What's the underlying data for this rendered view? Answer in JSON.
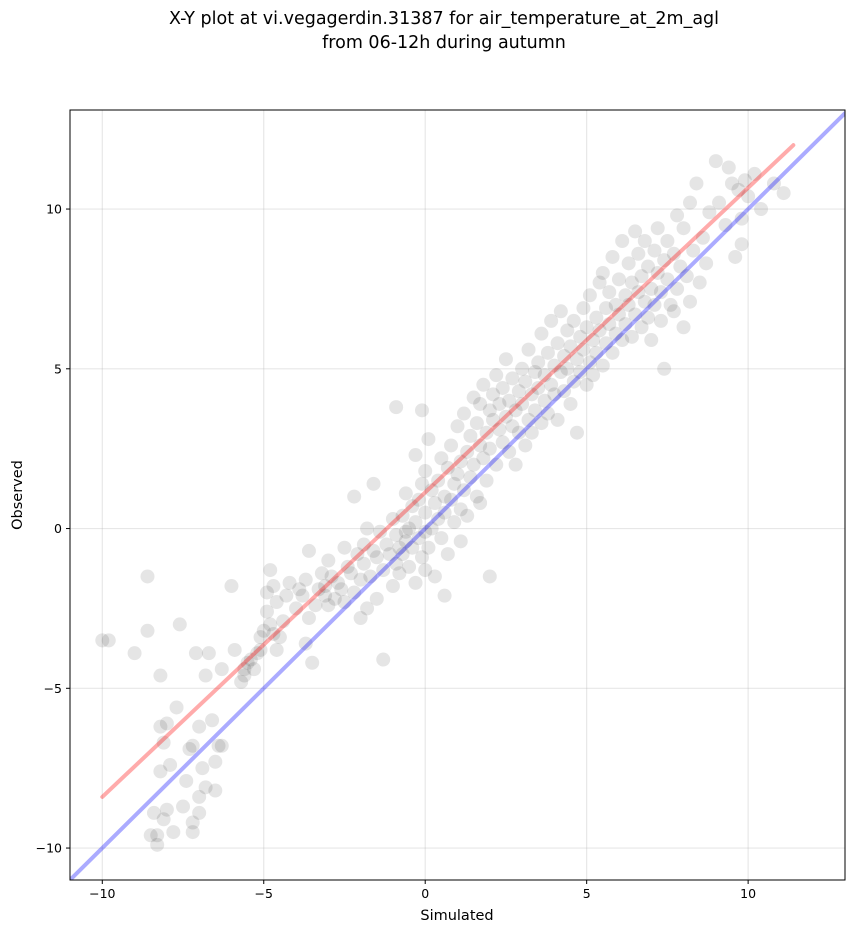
{
  "chart_data": {
    "type": "scatter",
    "title": [
      "X-Y plot at vi.vegagerdin.31387 for air_temperature_at_2m_agl",
      "from 06-12h during autumn"
    ],
    "xlabel": "Simulated",
    "ylabel": "Observed",
    "xlim": [
      -11,
      13
    ],
    "ylim": [
      -11,
      13.1
    ],
    "xticks": [
      -10,
      -5,
      0,
      5,
      10
    ],
    "yticks": [
      -10,
      -5,
      0,
      5,
      10
    ],
    "xtick_labels": [
      "−10",
      "−5",
      "0",
      "5",
      "10"
    ],
    "ytick_labels": [
      "−10",
      "−5",
      "0",
      "5",
      "10"
    ],
    "grid": true,
    "legend": "none",
    "point_color": "#000000",
    "point_opacity": 0.1,
    "fit_line": {
      "color": "#ff0000",
      "opacity": 0.33,
      "x": [
        -10,
        11.4
      ],
      "y": [
        -8.4,
        12.0
      ]
    },
    "identity_line": {
      "color": "#0000ff",
      "opacity": 0.33,
      "x": [
        -11,
        13
      ],
      "y": [
        -11,
        13
      ]
    },
    "points": [
      [
        -10.0,
        -3.5
      ],
      [
        -9.8,
        -3.5
      ],
      [
        -9.0,
        -3.9
      ],
      [
        -8.6,
        -1.5
      ],
      [
        -8.6,
        -3.2
      ],
      [
        -8.5,
        -9.6
      ],
      [
        -8.4,
        -8.9
      ],
      [
        -8.3,
        -9.6
      ],
      [
        -8.3,
        -9.9
      ],
      [
        -8.2,
        -7.6
      ],
      [
        -8.2,
        -6.2
      ],
      [
        -8.1,
        -6.7
      ],
      [
        -8.1,
        -9.1
      ],
      [
        -8.0,
        -8.8
      ],
      [
        -8.0,
        -6.1
      ],
      [
        -8.2,
        -4.6
      ],
      [
        -7.9,
        -7.4
      ],
      [
        -7.8,
        -9.5
      ],
      [
        -7.7,
        -5.6
      ],
      [
        -7.6,
        -3.0
      ],
      [
        -7.5,
        -8.7
      ],
      [
        -7.4,
        -7.9
      ],
      [
        -7.3,
        -6.9
      ],
      [
        -7.2,
        -9.5
      ],
      [
        -7.2,
        -9.2
      ],
      [
        -7.2,
        -6.8
      ],
      [
        -7.1,
        -3.9
      ],
      [
        -7.0,
        -8.4
      ],
      [
        -7.0,
        -6.2
      ],
      [
        -7.0,
        -8.9
      ],
      [
        -6.9,
        -7.5
      ],
      [
        -6.8,
        -4.6
      ],
      [
        -6.8,
        -8.1
      ],
      [
        -6.7,
        -3.9
      ],
      [
        -6.6,
        -6.0
      ],
      [
        -6.5,
        -7.3
      ],
      [
        -6.5,
        -8.2
      ],
      [
        -6.4,
        -6.8
      ],
      [
        -6.3,
        -6.8
      ],
      [
        -6.3,
        -4.4
      ],
      [
        -6.0,
        -1.8
      ],
      [
        -5.9,
        -3.8
      ],
      [
        -5.7,
        -4.8
      ],
      [
        -5.6,
        -4.6
      ],
      [
        -5.6,
        -4.4
      ],
      [
        -5.5,
        -4.2
      ],
      [
        -5.4,
        -4.1
      ],
      [
        -5.3,
        -4.4
      ],
      [
        -5.2,
        -3.9
      ],
      [
        -5.1,
        -3.8
      ],
      [
        -5.1,
        -3.4
      ],
      [
        -5.0,
        -3.2
      ],
      [
        -4.9,
        -2.0
      ],
      [
        -4.9,
        -2.6
      ],
      [
        -4.8,
        -3.0
      ],
      [
        -4.8,
        -1.3
      ],
      [
        -4.7,
        -3.3
      ],
      [
        -4.7,
        -1.8
      ],
      [
        -4.6,
        -3.8
      ],
      [
        -4.6,
        -2.3
      ],
      [
        -4.5,
        -3.4
      ],
      [
        -4.4,
        -2.9
      ],
      [
        -4.3,
        -2.1
      ],
      [
        -4.2,
        -1.7
      ],
      [
        -4.0,
        -2.5
      ],
      [
        -3.9,
        -1.9
      ],
      [
        -3.8,
        -2.1
      ],
      [
        -3.7,
        -3.6
      ],
      [
        -3.7,
        -1.6
      ],
      [
        -3.6,
        -0.7
      ],
      [
        -3.6,
        -2.8
      ],
      [
        -3.5,
        -4.2
      ],
      [
        -3.4,
        -2.4
      ],
      [
        -3.3,
        -1.9
      ],
      [
        -3.2,
        -1.4
      ],
      [
        -3.1,
        -2.1
      ],
      [
        -3.1,
        -1.8
      ],
      [
        -3.0,
        -2.4
      ],
      [
        -3.0,
        -1.0
      ],
      [
        -2.9,
        -1.5
      ],
      [
        -2.8,
        -2.2
      ],
      [
        -2.7,
        -1.7
      ],
      [
        -2.6,
        -1.9
      ],
      [
        -2.5,
        -2.3
      ],
      [
        -2.5,
        -0.6
      ],
      [
        -2.4,
        -1.2
      ],
      [
        -2.3,
        -1.4
      ],
      [
        -2.2,
        -2.0
      ],
      [
        -2.1,
        -0.8
      ],
      [
        -2.0,
        -1.6
      ],
      [
        -2.0,
        -2.8
      ],
      [
        -1.9,
        -0.5
      ],
      [
        -1.9,
        -1.1
      ],
      [
        -1.8,
        -2.5
      ],
      [
        -1.8,
        0.0
      ],
      [
        -1.7,
        -1.5
      ],
      [
        -1.6,
        -0.7
      ],
      [
        -1.5,
        -0.9
      ],
      [
        -1.5,
        -2.2
      ],
      [
        -1.4,
        -0.1
      ],
      [
        -1.3,
        -1.3
      ],
      [
        -1.3,
        -4.1
      ],
      [
        -1.2,
        -0.5
      ],
      [
        -1.1,
        -0.8
      ],
      [
        -1.0,
        -1.8
      ],
      [
        -1.0,
        0.3
      ],
      [
        -0.9,
        -1.1
      ],
      [
        -0.9,
        -0.2
      ],
      [
        -0.8,
        -0.6
      ],
      [
        -0.8,
        -1.4
      ],
      [
        -0.7,
        0.4
      ],
      [
        -0.7,
        -0.8
      ],
      [
        -0.6,
        1.1
      ],
      [
        -0.6,
        -0.4
      ],
      [
        -0.5,
        -1.2
      ],
      [
        -0.5,
        0.0
      ],
      [
        -0.4,
        0.7
      ],
      [
        -0.4,
        -0.6
      ],
      [
        -0.3,
        -1.7
      ],
      [
        -0.3,
        0.2
      ],
      [
        -0.2,
        0.9
      ],
      [
        -0.2,
        -0.3
      ],
      [
        -0.1,
        1.4
      ],
      [
        -0.1,
        -0.9
      ],
      [
        0.0,
        0.5
      ],
      [
        0.0,
        -0.1
      ],
      [
        0.0,
        1.8
      ],
      [
        0.1,
        2.8
      ],
      [
        0.1,
        -0.6
      ],
      [
        0.2,
        1.2
      ],
      [
        0.2,
        0.0
      ],
      [
        0.3,
        0.8
      ],
      [
        0.3,
        -1.5
      ],
      [
        0.4,
        1.5
      ],
      [
        0.4,
        0.3
      ],
      [
        0.5,
        2.2
      ],
      [
        0.5,
        -0.3
      ],
      [
        0.6,
        1.0
      ],
      [
        0.6,
        0.5
      ],
      [
        0.7,
        1.9
      ],
      [
        0.7,
        -0.8
      ],
      [
        0.8,
        0.9
      ],
      [
        0.8,
        2.6
      ],
      [
        0.9,
        1.4
      ],
      [
        0.9,
        0.2
      ],
      [
        1.0,
        1.7
      ],
      [
        1.0,
        3.2
      ],
      [
        1.1,
        0.6
      ],
      [
        1.1,
        2.1
      ],
      [
        1.2,
        1.2
      ],
      [
        1.2,
        3.6
      ],
      [
        1.3,
        2.4
      ],
      [
        1.3,
        0.4
      ],
      [
        1.4,
        1.6
      ],
      [
        1.4,
        2.9
      ],
      [
        1.5,
        4.1
      ],
      [
        1.5,
        2.0
      ],
      [
        1.6,
        3.3
      ],
      [
        1.6,
        1.0
      ],
      [
        1.7,
        2.6
      ],
      [
        1.7,
        3.9
      ],
      [
        1.8,
        2.2
      ],
      [
        1.8,
        4.5
      ],
      [
        1.9,
        3.0
      ],
      [
        1.9,
        1.5
      ],
      [
        2.0,
        3.7
      ],
      [
        2.0,
        2.5
      ],
      [
        2.1,
        4.2
      ],
      [
        2.1,
        3.4
      ],
      [
        2.2,
        2.0
      ],
      [
        2.2,
        4.8
      ],
      [
        2.3,
        3.1
      ],
      [
        2.3,
        3.9
      ],
      [
        2.4,
        2.7
      ],
      [
        2.4,
        4.4
      ],
      [
        2.5,
        3.5
      ],
      [
        2.5,
        5.3
      ],
      [
        2.6,
        2.4
      ],
      [
        2.6,
        4.0
      ],
      [
        2.7,
        3.2
      ],
      [
        2.7,
        4.7
      ],
      [
        2.8,
        3.7
      ],
      [
        2.8,
        2.0
      ],
      [
        2.9,
        4.3
      ],
      [
        2.9,
        3.0
      ],
      [
        3.0,
        5.0
      ],
      [
        3.0,
        3.9
      ],
      [
        3.1,
        2.6
      ],
      [
        3.1,
        4.6
      ],
      [
        3.2,
        3.4
      ],
      [
        3.2,
        5.6
      ],
      [
        3.3,
        4.2
      ],
      [
        3.3,
        3.0
      ],
      [
        3.4,
        4.9
      ],
      [
        3.4,
        3.7
      ],
      [
        3.5,
        5.2
      ],
      [
        3.5,
        4.4
      ],
      [
        3.6,
        3.3
      ],
      [
        3.6,
        6.1
      ],
      [
        3.7,
        4.8
      ],
      [
        3.7,
        4.0
      ],
      [
        3.8,
        5.5
      ],
      [
        3.8,
        3.6
      ],
      [
        3.9,
        4.5
      ],
      [
        3.9,
        6.5
      ],
      [
        4.0,
        5.1
      ],
      [
        4.0,
        4.2
      ],
      [
        4.1,
        5.8
      ],
      [
        4.1,
        3.4
      ],
      [
        4.2,
        4.9
      ],
      [
        4.2,
        6.8
      ],
      [
        4.3,
        5.4
      ],
      [
        4.3,
        4.3
      ],
      [
        4.4,
        6.2
      ],
      [
        4.4,
        5.0
      ],
      [
        4.5,
        3.9
      ],
      [
        4.5,
        5.7
      ],
      [
        4.6,
        4.6
      ],
      [
        4.6,
        6.5
      ],
      [
        4.7,
        5.3
      ],
      [
        4.7,
        3.0
      ],
      [
        4.8,
        6.0
      ],
      [
        4.8,
        4.9
      ],
      [
        4.9,
        5.6
      ],
      [
        4.9,
        6.9
      ],
      [
        5.0,
        4.5
      ],
      [
        5.0,
        6.3
      ],
      [
        5.1,
        5.2
      ],
      [
        5.1,
        7.3
      ],
      [
        5.2,
        5.9
      ],
      [
        5.2,
        4.8
      ],
      [
        5.3,
        6.6
      ],
      [
        5.3,
        5.5
      ],
      [
        5.4,
        7.7
      ],
      [
        5.4,
        6.2
      ],
      [
        5.5,
        5.1
      ],
      [
        5.5,
        8.0
      ],
      [
        5.6,
        6.9
      ],
      [
        5.6,
        5.8
      ],
      [
        5.7,
        7.4
      ],
      [
        5.7,
        6.4
      ],
      [
        5.8,
        8.5
      ],
      [
        5.8,
        5.5
      ],
      [
        5.9,
        7.0
      ],
      [
        5.9,
        6.1
      ],
      [
        6.0,
        7.8
      ],
      [
        6.0,
        6.7
      ],
      [
        6.1,
        9.0
      ],
      [
        6.1,
        5.9
      ],
      [
        6.2,
        7.3
      ],
      [
        6.2,
        6.4
      ],
      [
        6.3,
        8.3
      ],
      [
        6.3,
        7.0
      ],
      [
        6.4,
        6.0
      ],
      [
        6.4,
        7.7
      ],
      [
        6.5,
        9.3
      ],
      [
        6.5,
        6.7
      ],
      [
        6.6,
        7.4
      ],
      [
        6.6,
        8.6
      ],
      [
        6.7,
        6.3
      ],
      [
        6.7,
        7.9
      ],
      [
        6.8,
        7.1
      ],
      [
        6.8,
        9.0
      ],
      [
        6.9,
        6.6
      ],
      [
        6.9,
        8.2
      ],
      [
        7.0,
        7.5
      ],
      [
        7.0,
        5.9
      ],
      [
        7.1,
        8.7
      ],
      [
        7.1,
        7.0
      ],
      [
        7.2,
        8.0
      ],
      [
        7.2,
        9.4
      ],
      [
        7.3,
        7.4
      ],
      [
        7.3,
        6.5
      ],
      [
        7.4,
        8.4
      ],
      [
        7.4,
        5.0
      ],
      [
        7.5,
        7.8
      ],
      [
        7.5,
        9.0
      ],
      [
        7.6,
        7.0
      ],
      [
        7.7,
        8.6
      ],
      [
        7.7,
        6.8
      ],
      [
        7.8,
        9.8
      ],
      [
        7.8,
        7.5
      ],
      [
        7.9,
        8.2
      ],
      [
        8.0,
        6.3
      ],
      [
        8.0,
        9.4
      ],
      [
        8.1,
        7.9
      ],
      [
        8.2,
        10.2
      ],
      [
        8.2,
        7.1
      ],
      [
        8.3,
        8.7
      ],
      [
        8.4,
        10.8
      ],
      [
        8.5,
        7.7
      ],
      [
        8.6,
        9.1
      ],
      [
        8.7,
        8.3
      ],
      [
        8.8,
        9.9
      ],
      [
        9.0,
        11.5
      ],
      [
        9.1,
        10.2
      ],
      [
        9.3,
        9.5
      ],
      [
        9.4,
        11.3
      ],
      [
        9.5,
        10.8
      ],
      [
        9.6,
        8.5
      ],
      [
        9.7,
        10.6
      ],
      [
        9.8,
        9.7
      ],
      [
        9.8,
        8.9
      ],
      [
        9.9,
        10.9
      ],
      [
        10.0,
        10.4
      ],
      [
        10.2,
        11.1
      ],
      [
        10.4,
        10.0
      ],
      [
        10.8,
        10.8
      ],
      [
        11.1,
        10.5
      ],
      [
        -0.1,
        3.7
      ],
      [
        -0.9,
        3.8
      ],
      [
        0.6,
        -2.1
      ],
      [
        -0.3,
        2.3
      ],
      [
        1.7,
        0.8
      ],
      [
        -1.6,
        1.4
      ],
      [
        2.0,
        -1.5
      ],
      [
        0.0,
        -1.3
      ],
      [
        -2.2,
        1.0
      ],
      [
        1.1,
        -0.4
      ],
      [
        -0.6,
        -0.1
      ]
    ]
  }
}
